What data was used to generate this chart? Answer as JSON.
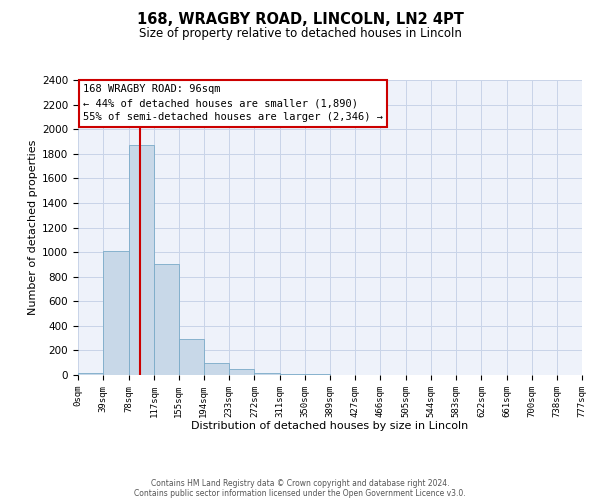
{
  "title": "168, WRAGBY ROAD, LINCOLN, LN2 4PT",
  "subtitle": "Size of property relative to detached houses in Lincoln",
  "xlabel": "Distribution of detached houses by size in Lincoln",
  "ylabel": "Number of detached properties",
  "annotation_title": "168 WRAGBY ROAD: 96sqm",
  "annotation_line1": "← 44% of detached houses are smaller (1,890)",
  "annotation_line2": "55% of semi-detached houses are larger (2,346) →",
  "footer_line1": "Contains HM Land Registry data © Crown copyright and database right 2024.",
  "footer_line2": "Contains public sector information licensed under the Open Government Licence v3.0.",
  "bar_color": "#c8d8e8",
  "bar_edge_color": "#7aaac8",
  "grid_color": "#c8d4e8",
  "background_color": "#eef2fa",
  "red_line_x": 96,
  "bin_edges": [
    0,
    39,
    78,
    117,
    155,
    194,
    233,
    272,
    311,
    350,
    389,
    427,
    466,
    505,
    544,
    583,
    622,
    661,
    700,
    738,
    777
  ],
  "bin_heights": [
    20,
    1010,
    1870,
    900,
    295,
    100,
    45,
    20,
    12,
    5,
    0,
    0,
    0,
    0,
    0,
    0,
    0,
    0,
    0,
    0
  ],
  "ylim": [
    0,
    2400
  ],
  "yticks": [
    0,
    200,
    400,
    600,
    800,
    1000,
    1200,
    1400,
    1600,
    1800,
    2000,
    2200,
    2400
  ],
  "tick_labels": [
    "0sqm",
    "39sqm",
    "78sqm",
    "117sqm",
    "155sqm",
    "194sqm",
    "233sqm",
    "272sqm",
    "311sqm",
    "350sqm",
    "389sqm",
    "427sqm",
    "466sqm",
    "505sqm",
    "544sqm",
    "583sqm",
    "622sqm",
    "661sqm",
    "700sqm",
    "738sqm",
    "777sqm"
  ]
}
